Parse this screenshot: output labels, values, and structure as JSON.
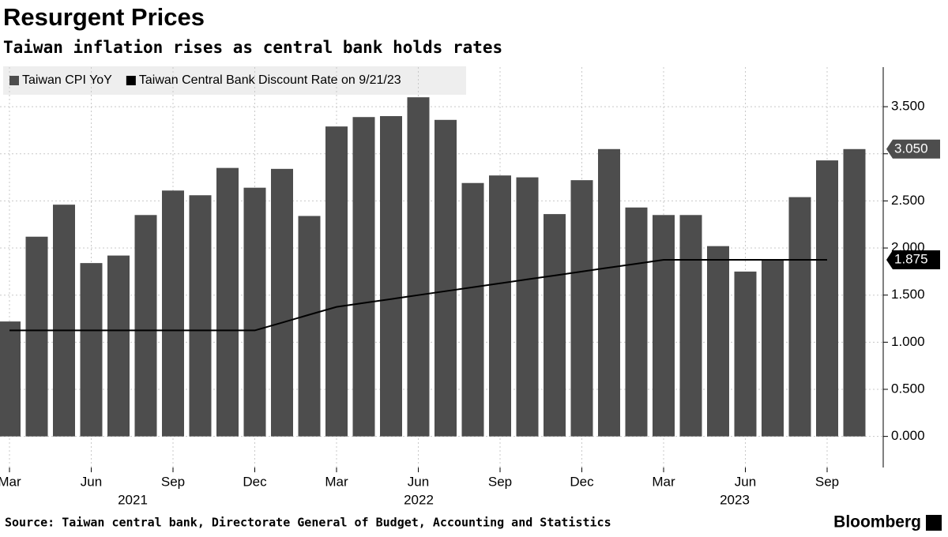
{
  "chart_data": {
    "type": "bar",
    "title": "Resurgent Prices",
    "subtitle": "Taiwan inflation rises as central bank holds rates",
    "source": "Source: Taiwan central bank, Directorate General of Budget, Accounting and Statistics",
    "brand": "Bloomberg",
    "categories": [
      "Mar",
      null,
      null,
      "Jun",
      null,
      null,
      "Sep",
      null,
      null,
      "Dec",
      null,
      null,
      "Mar",
      null,
      null,
      "Jun",
      null,
      null,
      "Sep",
      null,
      null,
      "Dec",
      null,
      null,
      "Mar",
      null,
      null,
      "Jun",
      null,
      null,
      "Sep",
      null
    ],
    "year_labels": [
      "2021",
      "2022",
      "2023"
    ],
    "series": [
      {
        "name": "Taiwan CPI YoY",
        "type": "bar",
        "color": "#4d4d4d",
        "end_label": "3.050",
        "values": [
          1.22,
          2.12,
          2.46,
          1.84,
          1.92,
          2.35,
          2.61,
          2.56,
          2.85,
          2.64,
          2.84,
          2.34,
          3.29,
          3.39,
          3.4,
          3.6,
          3.36,
          2.69,
          2.77,
          2.75,
          2.36,
          2.72,
          3.05,
          2.43,
          2.35,
          2.35,
          2.02,
          1.75,
          1.88,
          2.54,
          2.93,
          3.05
        ]
      },
      {
        "name": "Taiwan Central Bank Discount Rate on 9/21/23",
        "type": "line",
        "color": "#000000",
        "end_label": "1.875",
        "values": [
          1.125,
          1.125,
          1.125,
          1.125,
          1.125,
          1.125,
          1.125,
          1.125,
          1.125,
          1.125,
          1.208,
          1.292,
          1.375,
          1.417,
          1.458,
          1.5,
          1.542,
          1.583,
          1.625,
          1.667,
          1.708,
          1.75,
          1.792,
          1.833,
          1.875,
          1.875,
          1.875,
          1.875,
          1.875,
          1.875,
          1.875,
          null
        ]
      }
    ],
    "ylim": [
      -0.33,
      3.92
    ],
    "yticks": [
      {
        "value": 0,
        "label": "0.000"
      },
      {
        "value": 0.5,
        "label": "0.500"
      },
      {
        "value": 1,
        "label": "1.000"
      },
      {
        "value": 1.5,
        "label": "1.500"
      },
      {
        "value": 2,
        "label": "2.000"
      },
      {
        "value": 2.5,
        "label": "2.500"
      },
      {
        "value": 3,
        "label": "3.000"
      },
      {
        "value": 3.5,
        "label": "3.500"
      }
    ],
    "grid": true
  }
}
